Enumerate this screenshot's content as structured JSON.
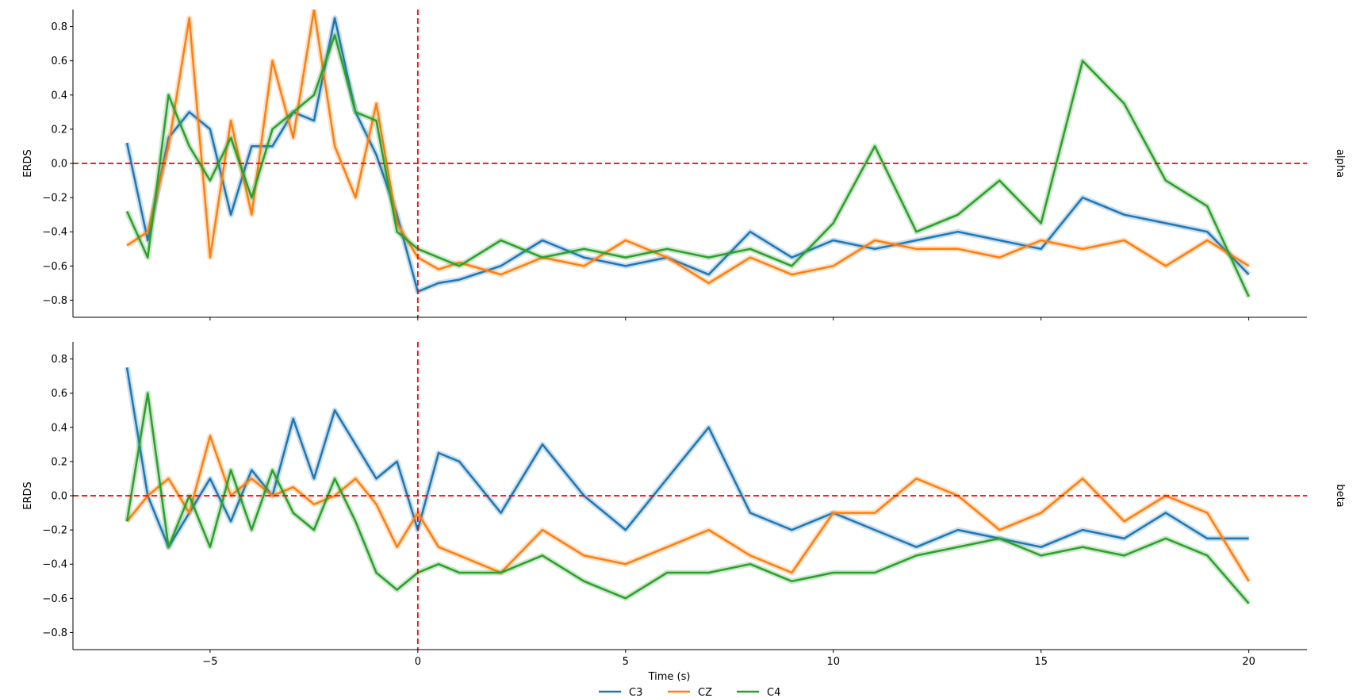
{
  "chart_data": {
    "type": "line",
    "xlabel": "Time (s)",
    "ylabel": "ERDS",
    "xlim": [
      -8.3,
      21.4
    ],
    "ylim": [
      -0.9,
      0.9
    ],
    "xticks": [
      -5,
      0,
      5,
      10,
      15,
      20
    ],
    "xtick_labels": [
      "−5",
      "0",
      "5",
      "10",
      "15",
      "20"
    ],
    "yticks": [
      -0.8,
      -0.6,
      -0.4,
      -0.2,
      0.0,
      0.2,
      0.4,
      0.6,
      0.8
    ],
    "ytick_labels": [
      "−0.8",
      "−0.6",
      "−0.4",
      "−0.2",
      "0.0",
      "0.2",
      "0.4",
      "0.6",
      "0.8"
    ],
    "reference_lines": {
      "horizontal_y": 0.0,
      "vertical_x": 0.0,
      "color": "#ff0000",
      "style": "dashed"
    },
    "legend_placement": "bottom-center",
    "series_styles": [
      {
        "name": "C3",
        "color": "#1f77b4"
      },
      {
        "name": "CZ",
        "color": "#ff7f0e"
      },
      {
        "name": "C4",
        "color": "#2ca02c"
      }
    ],
    "panels": [
      {
        "label": "alpha",
        "series": [
          {
            "name": "C3",
            "x": [
              -7,
              -6.5,
              -6,
              -5.5,
              -5,
              -4.5,
              -4,
              -3.5,
              -3,
              -2.5,
              -2,
              -1.5,
              -1,
              -0.5,
              0,
              0.5,
              1,
              2,
              3,
              4,
              5,
              6,
              7,
              8,
              9,
              10,
              11,
              12,
              13,
              14,
              15,
              16,
              17,
              18,
              19,
              20
            ],
            "y": [
              0.12,
              -0.45,
              0.15,
              0.3,
              0.2,
              -0.3,
              0.1,
              0.1,
              0.3,
              0.25,
              0.85,
              0.3,
              0.05,
              -0.3,
              -0.75,
              -0.7,
              -0.68,
              -0.6,
              -0.45,
              -0.55,
              -0.6,
              -0.55,
              -0.65,
              -0.4,
              -0.55,
              -0.45,
              -0.5,
              -0.45,
              -0.4,
              -0.45,
              -0.5,
              -0.2,
              -0.3,
              -0.35,
              -0.4,
              -0.65
            ]
          },
          {
            "name": "CZ",
            "x": [
              -7,
              -6.5,
              -6,
              -5.5,
              -5,
              -4.5,
              -4,
              -3.5,
              -3,
              -2.5,
              -2,
              -1.5,
              -1,
              -0.5,
              0,
              0.5,
              1,
              2,
              3,
              4,
              5,
              6,
              7,
              8,
              9,
              10,
              11,
              12,
              13,
              14,
              15,
              16,
              17,
              18,
              19,
              20
            ],
            "y": [
              -0.48,
              -0.4,
              0.1,
              0.85,
              -0.55,
              0.25,
              -0.3,
              0.6,
              0.15,
              0.9,
              0.1,
              -0.2,
              0.35,
              -0.35,
              -0.55,
              -0.62,
              -0.58,
              -0.65,
              -0.55,
              -0.6,
              -0.45,
              -0.55,
              -0.7,
              -0.55,
              -0.65,
              -0.6,
              -0.45,
              -0.5,
              -0.5,
              -0.55,
              -0.45,
              -0.5,
              -0.45,
              -0.6,
              -0.45,
              -0.6
            ]
          },
          {
            "name": "C4",
            "x": [
              -7,
              -6.5,
              -6,
              -5.5,
              -5,
              -4.5,
              -4,
              -3.5,
              -3,
              -2.5,
              -2,
              -1.5,
              -1,
              -0.5,
              0,
              0.5,
              1,
              2,
              3,
              4,
              5,
              6,
              7,
              8,
              9,
              10,
              11,
              12,
              13,
              14,
              15,
              16,
              17,
              18,
              19,
              20
            ],
            "y": [
              -0.28,
              -0.55,
              0.4,
              0.1,
              -0.1,
              0.15,
              -0.2,
              0.2,
              0.3,
              0.4,
              0.75,
              0.3,
              0.25,
              -0.4,
              -0.5,
              -0.55,
              -0.6,
              -0.45,
              -0.55,
              -0.5,
              -0.55,
              -0.5,
              -0.55,
              -0.5,
              -0.6,
              -0.35,
              0.1,
              -0.4,
              -0.3,
              -0.1,
              -0.35,
              0.6,
              0.35,
              -0.1,
              -0.25,
              -0.78
            ]
          }
        ]
      },
      {
        "label": "beta",
        "series": [
          {
            "name": "C3",
            "x": [
              -7,
              -6.5,
              -6,
              -5.5,
              -5,
              -4.5,
              -4,
              -3.5,
              -3,
              -2.5,
              -2,
              -1.5,
              -1,
              -0.5,
              0,
              0.5,
              1,
              2,
              3,
              4,
              5,
              6,
              7,
              8,
              9,
              10,
              11,
              12,
              13,
              14,
              15,
              16,
              17,
              18,
              19,
              20
            ],
            "y": [
              0.75,
              0.0,
              -0.3,
              -0.1,
              0.1,
              -0.15,
              0.15,
              0.0,
              0.45,
              0.1,
              0.5,
              0.3,
              0.1,
              0.2,
              -0.2,
              0.25,
              0.2,
              -0.1,
              0.3,
              0.0,
              -0.2,
              0.1,
              0.4,
              -0.1,
              -0.2,
              -0.1,
              -0.2,
              -0.3,
              -0.2,
              -0.25,
              -0.3,
              -0.2,
              -0.25,
              -0.1,
              -0.25,
              -0.25
            ]
          },
          {
            "name": "CZ",
            "x": [
              -7,
              -6.5,
              -6,
              -5.5,
              -5,
              -4.5,
              -4,
              -3.5,
              -3,
              -2.5,
              -2,
              -1.5,
              -1,
              -0.5,
              0,
              0.5,
              1,
              2,
              3,
              4,
              5,
              6,
              7,
              8,
              9,
              10,
              11,
              12,
              13,
              14,
              15,
              16,
              17,
              18,
              19,
              20
            ],
            "y": [
              -0.15,
              0.0,
              0.1,
              -0.1,
              0.35,
              0.0,
              0.1,
              0.0,
              0.05,
              -0.05,
              0.0,
              0.1,
              -0.05,
              -0.3,
              -0.1,
              -0.3,
              -0.35,
              -0.45,
              -0.2,
              -0.35,
              -0.4,
              -0.3,
              -0.2,
              -0.35,
              -0.45,
              -0.1,
              -0.1,
              0.1,
              0.0,
              -0.2,
              -0.1,
              0.1,
              -0.15,
              0.0,
              -0.1,
              -0.5
            ]
          },
          {
            "name": "C4",
            "x": [
              -7,
              -6.5,
              -6,
              -5.5,
              -5,
              -4.5,
              -4,
              -3.5,
              -3,
              -2.5,
              -2,
              -1.5,
              -1,
              -0.5,
              0,
              0.5,
              1,
              2,
              3,
              4,
              5,
              6,
              7,
              8,
              9,
              10,
              11,
              12,
              13,
              14,
              15,
              16,
              17,
              18,
              19,
              20
            ],
            "y": [
              -0.15,
              0.6,
              -0.3,
              0.0,
              -0.3,
              0.15,
              -0.2,
              0.15,
              -0.1,
              -0.2,
              0.1,
              -0.15,
              -0.45,
              -0.55,
              -0.45,
              -0.4,
              -0.45,
              -0.45,
              -0.35,
              -0.5,
              -0.6,
              -0.45,
              -0.45,
              -0.4,
              -0.5,
              -0.45,
              -0.45,
              -0.35,
              -0.3,
              -0.25,
              -0.35,
              -0.3,
              -0.35,
              -0.25,
              -0.35,
              -0.63
            ]
          }
        ]
      }
    ]
  }
}
